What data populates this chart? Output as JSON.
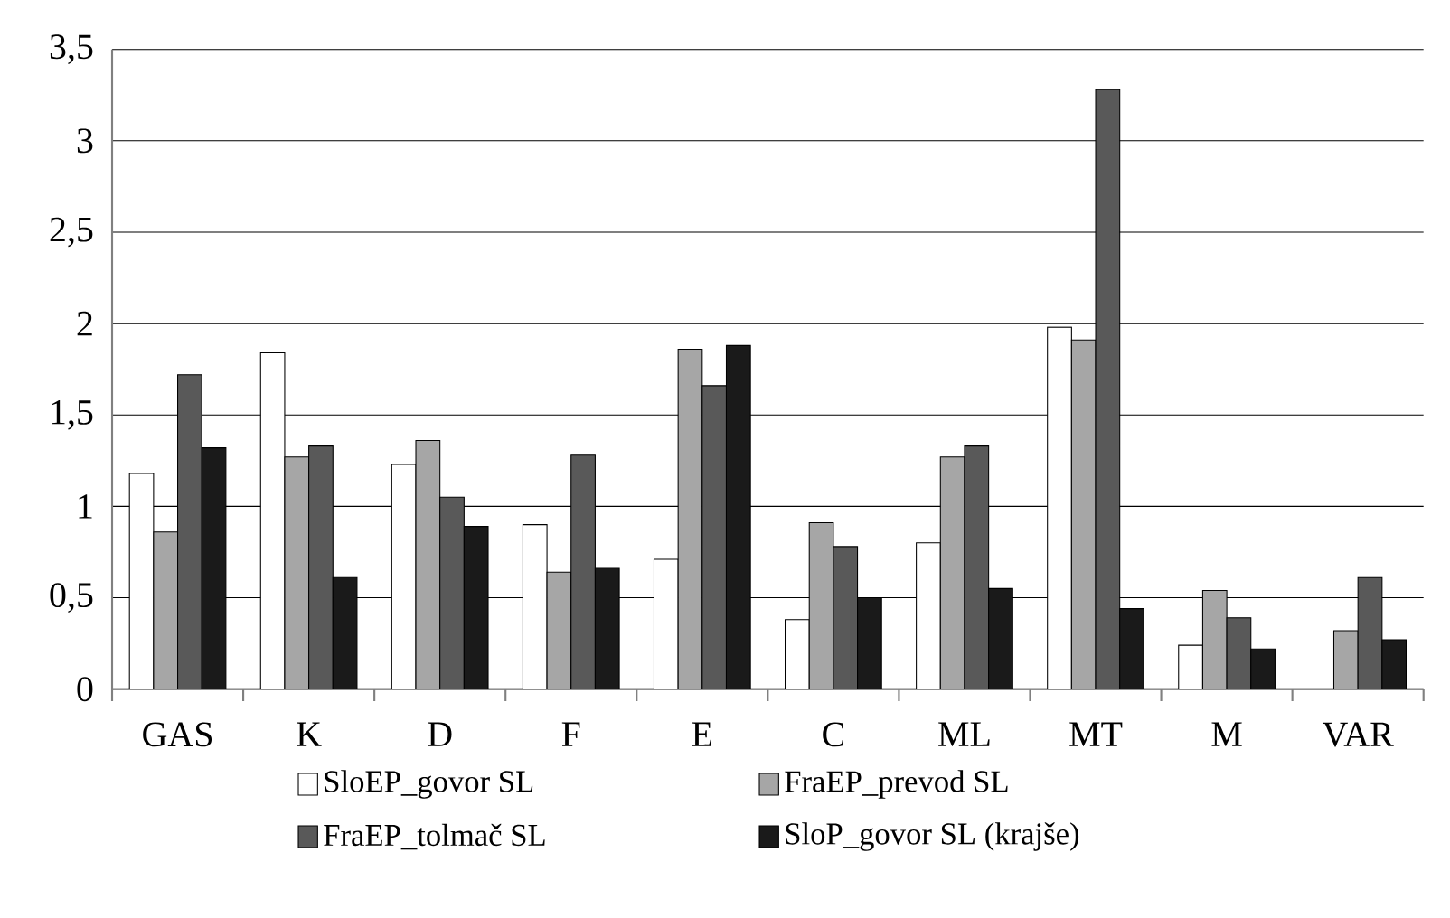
{
  "chart_data": {
    "type": "bar",
    "categories": [
      "GAS",
      "K",
      "D",
      "F",
      "E",
      "C",
      "ML",
      "MT",
      "M",
      "VAR"
    ],
    "series": [
      {
        "name": "SloEP_govor SL",
        "color": "#ffffff",
        "values": [
          1.18,
          1.84,
          1.23,
          0.9,
          0.71,
          0.38,
          0.8,
          1.98,
          0.24,
          null
        ]
      },
      {
        "name": "FraEP_prevod SL",
        "color": "#a6a6a6",
        "values": [
          0.86,
          1.27,
          1.36,
          0.64,
          1.86,
          0.91,
          1.27,
          1.91,
          0.54,
          0.32
        ]
      },
      {
        "name": "FraEP_tolmač SL",
        "color": "#595959",
        "values": [
          1.72,
          1.33,
          1.05,
          1.28,
          1.66,
          0.78,
          1.33,
          3.28,
          0.39,
          0.61
        ]
      },
      {
        "name": "SloP_govor SL (krajše)",
        "color": "#1a1a1a",
        "values": [
          1.32,
          0.61,
          0.89,
          0.66,
          1.88,
          0.5,
          0.55,
          0.44,
          0.22,
          0.27
        ]
      }
    ],
    "ylim": [
      0,
      3.5
    ],
    "yticks": [
      {
        "value": 0,
        "label": "0"
      },
      {
        "value": 0.5,
        "label": "0,5"
      },
      {
        "value": 1,
        "label": "1"
      },
      {
        "value": 1.5,
        "label": "1,5"
      },
      {
        "value": 2,
        "label": "2"
      },
      {
        "value": 2.5,
        "label": "2,5"
      },
      {
        "value": 3,
        "label": "3"
      },
      {
        "value": 3.5,
        "label": "3,5"
      }
    ],
    "grid": "y",
    "legend": "bottom"
  }
}
